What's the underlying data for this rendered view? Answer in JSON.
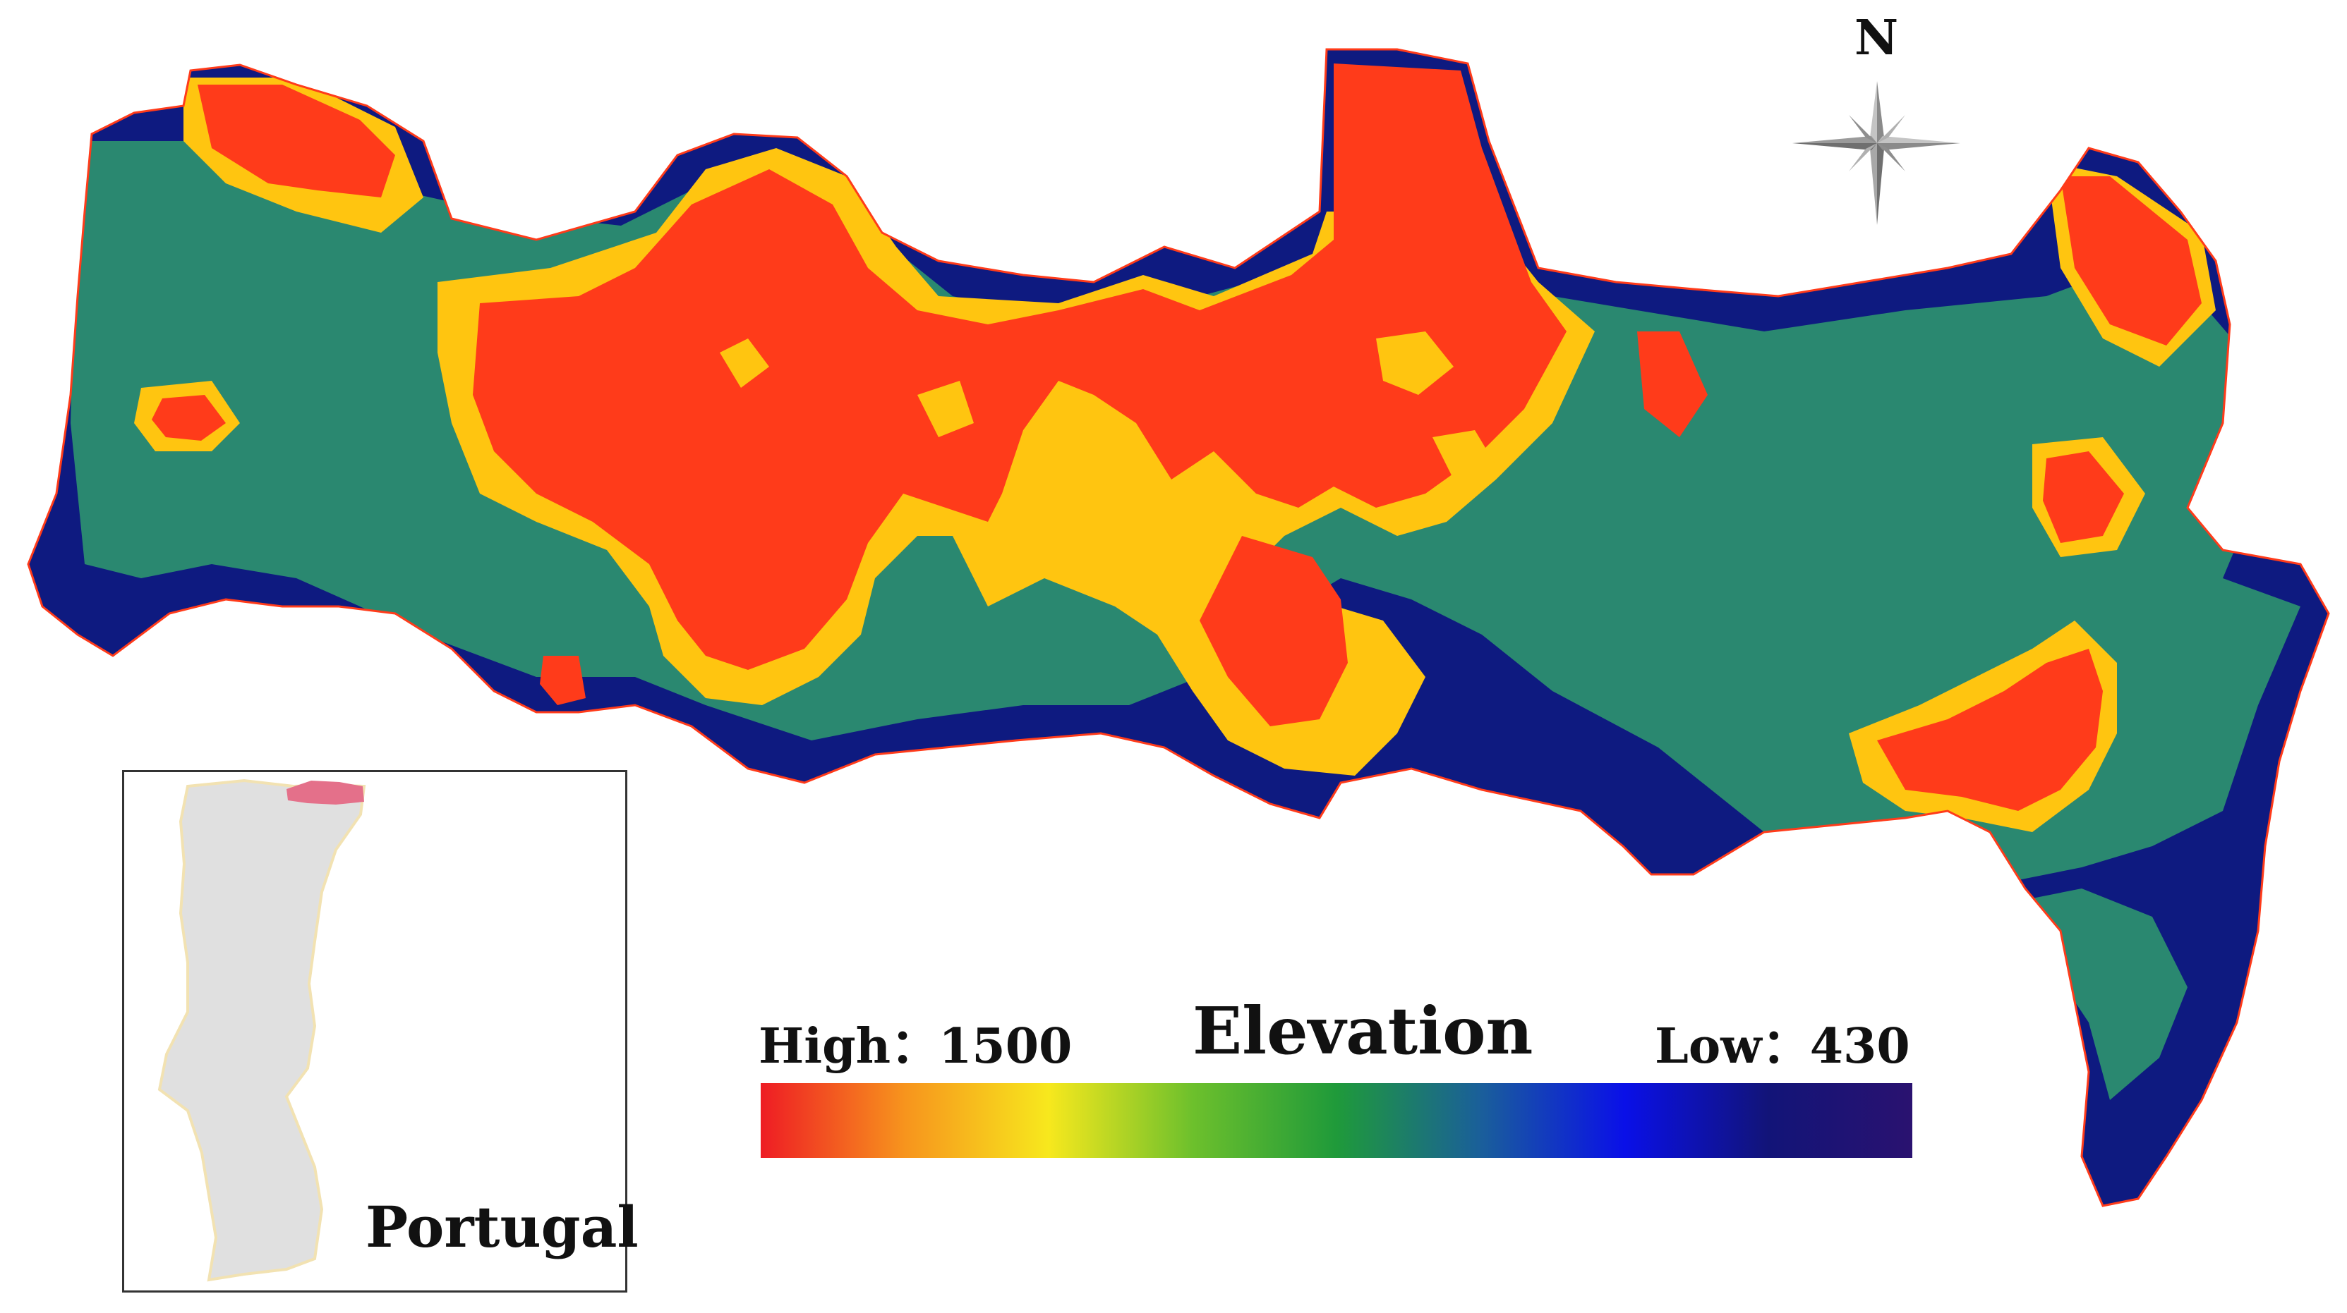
{
  "legend": {
    "title": "Elevation",
    "high_text": "High：1500",
    "low_text": "Low：430",
    "high_value": 1500,
    "low_value": 430,
    "gradient_colors": [
      "#ee1c24",
      "#f7941d",
      "#f7e81d",
      "#6dc02c",
      "#1f9a3a",
      "#1a5f9a",
      "#0a10e8",
      "#121478",
      "#2a1270"
    ]
  },
  "inset": {
    "label": "Portugal",
    "country_fill": "#e0e0e0",
    "country_outline": "#f2e2b2",
    "highlight_fill": "#e4708a"
  },
  "north_arrow": {
    "label": "N",
    "icon": "compass-rose-icon"
  },
  "map_colors": {
    "high": "#ff3b1a",
    "mid_high": "#ffc510",
    "mid": "#2a8870",
    "low": "#0e1a80"
  }
}
